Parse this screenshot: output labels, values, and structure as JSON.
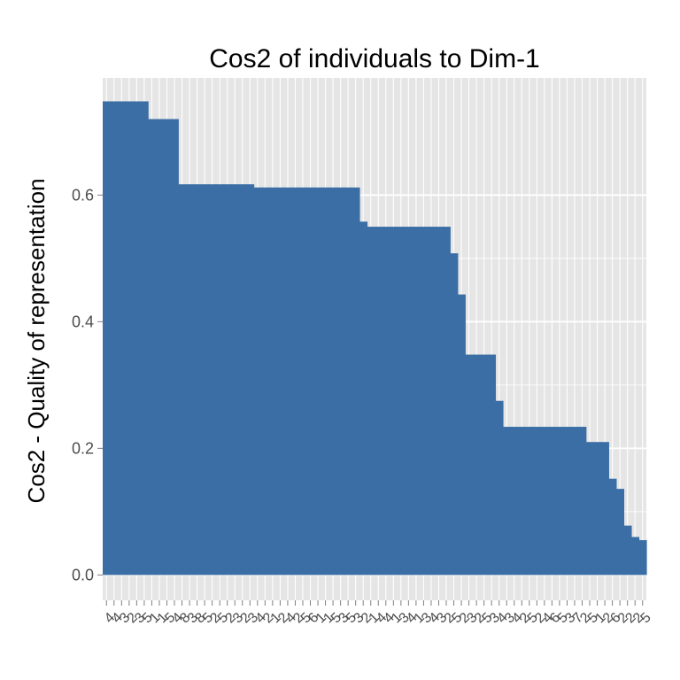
{
  "chart_data": {
    "type": "bar",
    "title": "Cos2 of individuals to Dim-1",
    "xlabel": "",
    "ylabel": "Cos2 - Quality of representation",
    "ylim": [
      -0.04,
      0.785
    ],
    "yticks": [
      "0.0",
      "0.2",
      "0.4",
      "0.6"
    ],
    "ytick_values": [
      0.0,
      0.2,
      0.4,
      0.6
    ],
    "grid": true,
    "legend": "none",
    "categories": [
      "4",
      "4",
      "3",
      "2",
      "3",
      "5",
      "1",
      "1",
      "5",
      "4",
      "8",
      "3",
      "8",
      "5",
      "2",
      "5",
      "2",
      "3",
      "2",
      "3",
      "4",
      "2",
      "1",
      "2",
      "4",
      "2",
      "5",
      "6",
      "1",
      "1",
      "5",
      "3",
      "5",
      "3",
      "2",
      "1",
      "4",
      "4",
      "1",
      "3",
      "4",
      "1",
      "3",
      "4",
      "3",
      "2",
      "5",
      "2",
      "3",
      "2",
      "5",
      "3",
      "4",
      "3",
      "4",
      "2",
      "5",
      "2",
      "4",
      "6",
      "5",
      "3",
      "7",
      "2",
      "5",
      "1",
      "2",
      "6",
      "2",
      "2",
      "2",
      "5"
    ],
    "values": [
      0.748,
      0.748,
      0.748,
      0.748,
      0.748,
      0.748,
      0.72,
      0.72,
      0.72,
      0.72,
      0.617,
      0.617,
      0.617,
      0.617,
      0.617,
      0.617,
      0.617,
      0.617,
      0.617,
      0.617,
      0.612,
      0.612,
      0.612,
      0.612,
      0.612,
      0.612,
      0.612,
      0.612,
      0.612,
      0.612,
      0.612,
      0.612,
      0.612,
      0.612,
      0.558,
      0.55,
      0.55,
      0.55,
      0.55,
      0.55,
      0.55,
      0.55,
      0.55,
      0.55,
      0.55,
      0.55,
      0.508,
      0.443,
      0.348,
      0.348,
      0.348,
      0.348,
      0.275,
      0.234,
      0.234,
      0.234,
      0.234,
      0.234,
      0.234,
      0.234,
      0.234,
      0.234,
      0.234,
      0.234,
      0.21,
      0.21,
      0.21,
      0.152,
      0.136,
      0.078,
      0.06,
      0.055
    ],
    "bar_color": "#3a6ea5",
    "panel_background": "#e5e5e5",
    "grid_color": "#ffffff"
  }
}
